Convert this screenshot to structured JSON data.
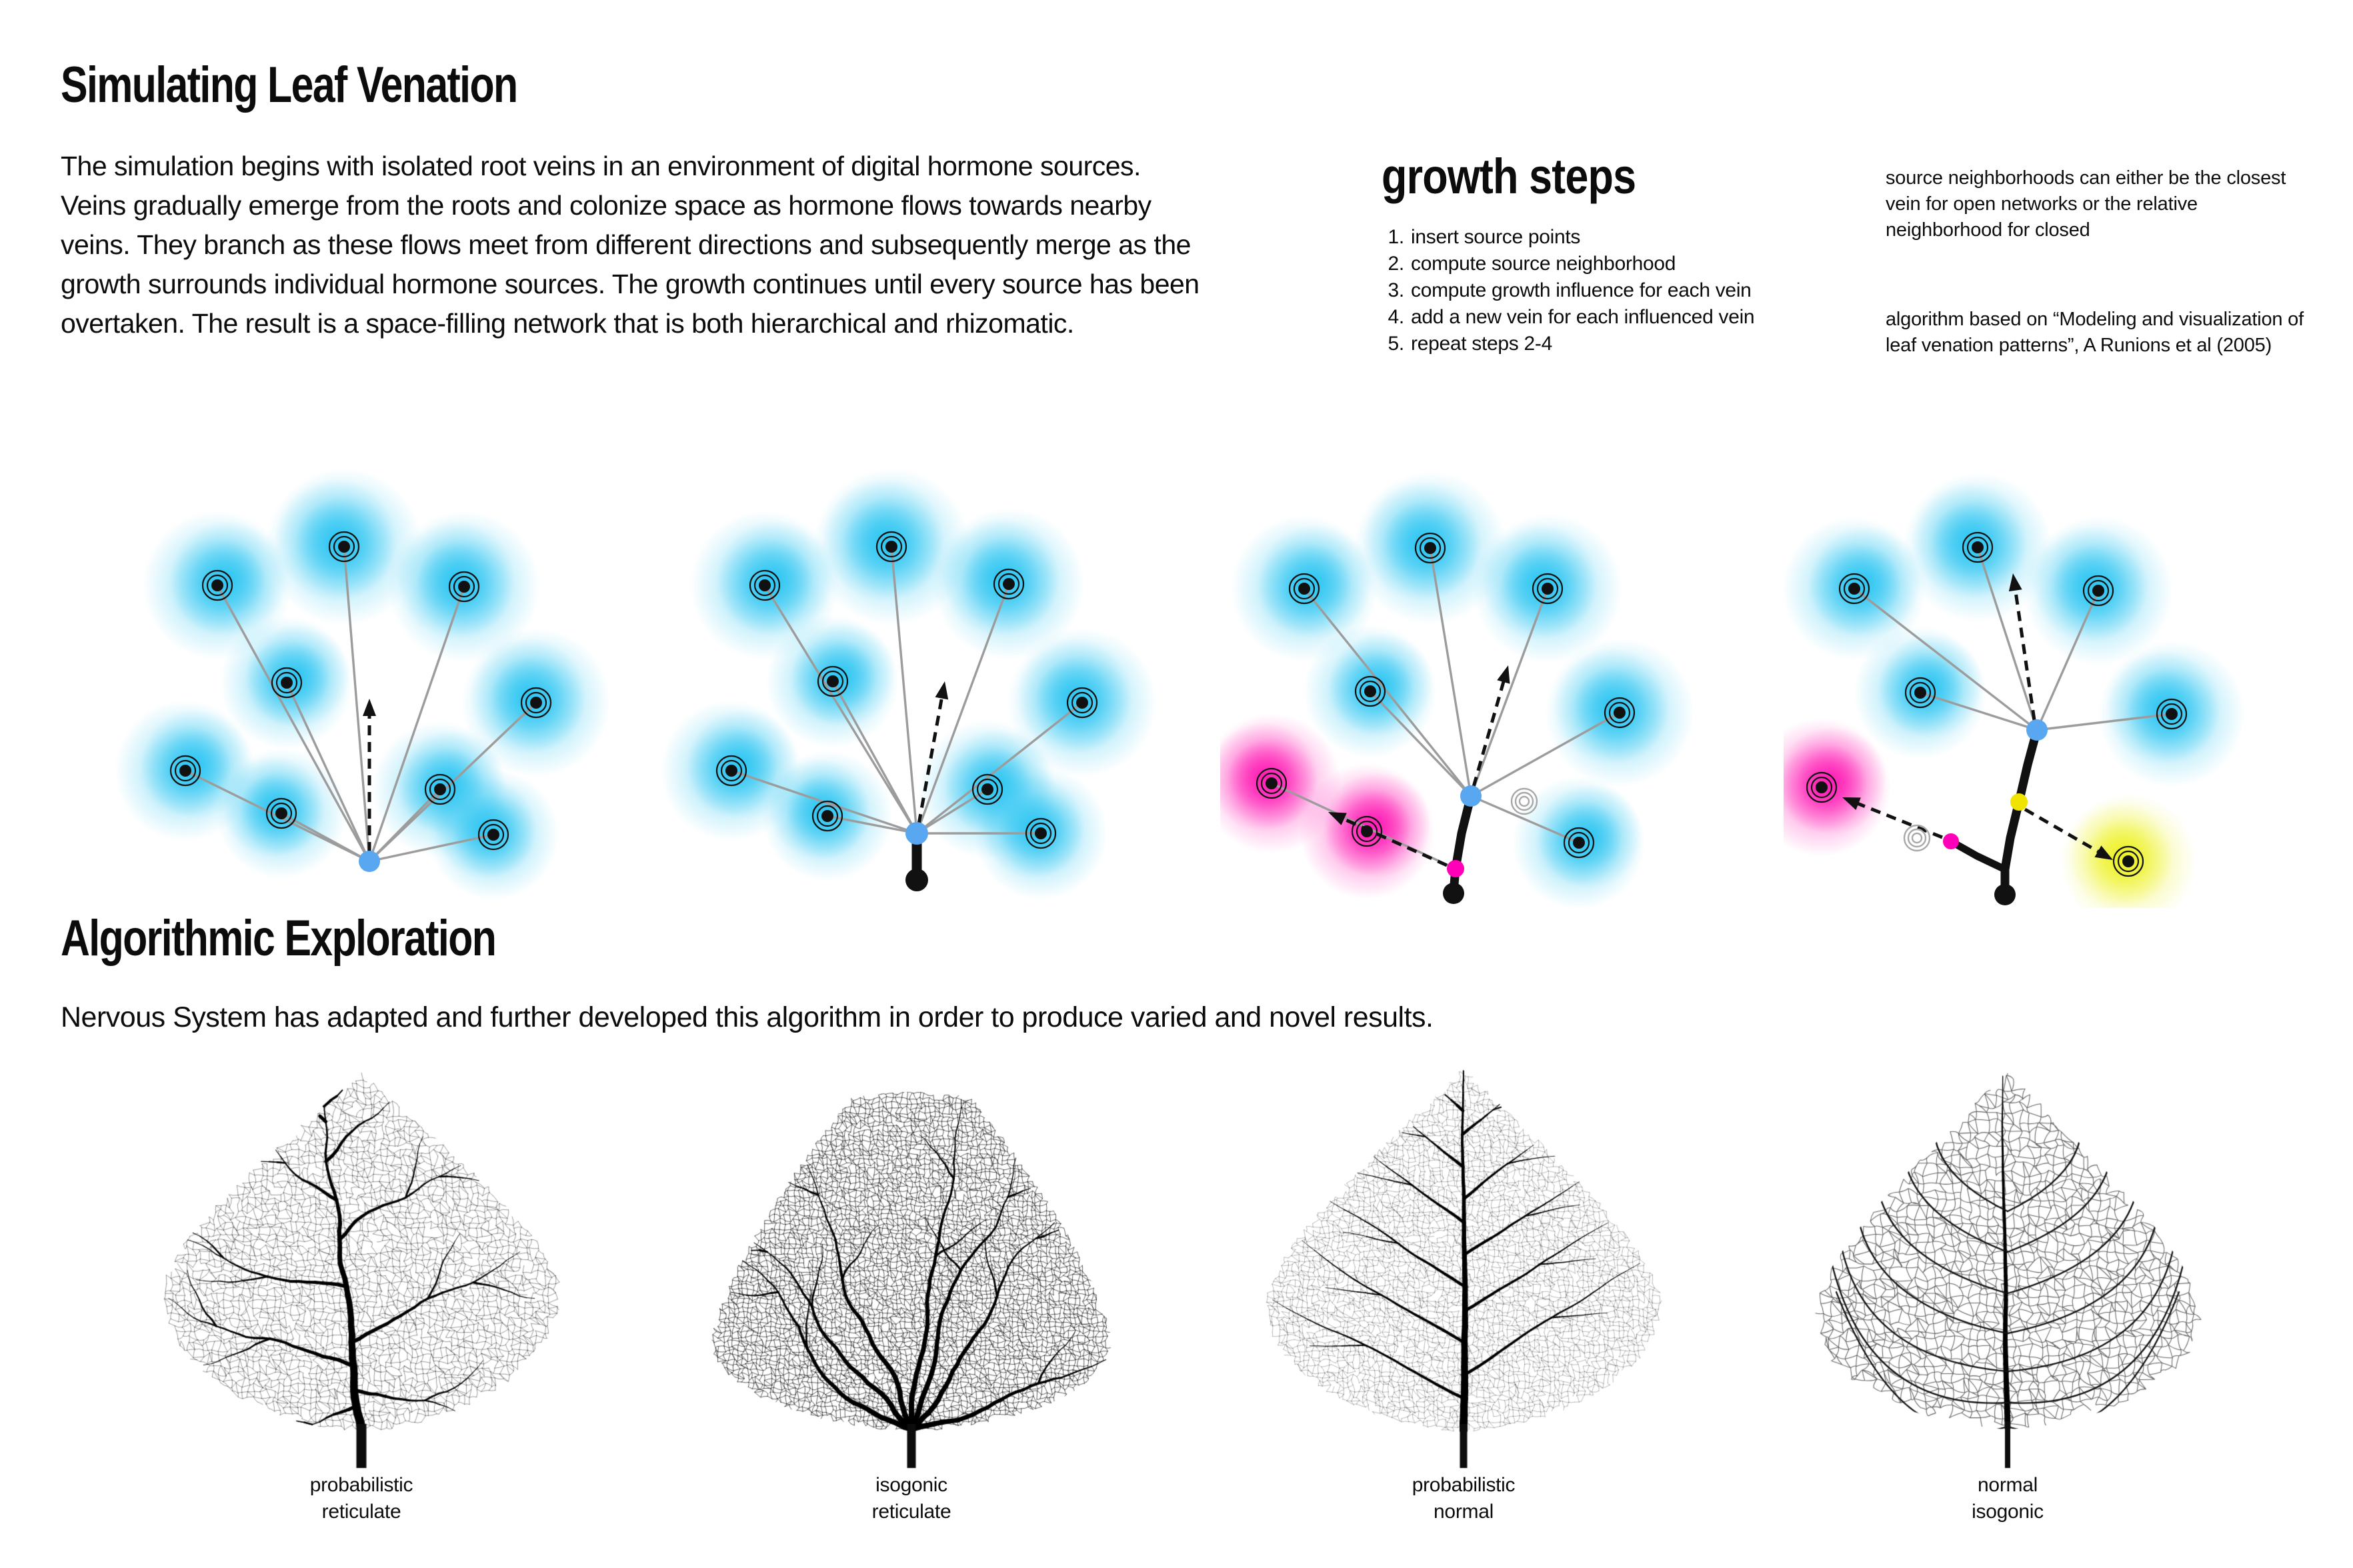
{
  "page": {
    "background": "#ffffff"
  },
  "colors": {
    "ink": "#111111",
    "line_gray": "#9c9c9c",
    "node_blue": "#58a7f0",
    "node_magenta": "#ff00b8",
    "node_yellow": "#f0e300",
    "glow_cyan": "#2fc6f2",
    "glow_magenta": "#ff1eb5",
    "glow_yellow": "#eef229",
    "dead_ring_gray": "#a8a8a8"
  },
  "header": {
    "title": "Simulating Leaf Venation",
    "intro": "The simulation begins with isolated root veins in an environment of digital hormone sources. Veins gradually emerge from the roots and colonize space as hormone flows towards nearby veins. They branch as these flows meet from different directions and subsequently merge as the growth surrounds individual hormone sources. The growth continues until every source has been overtaken. The result is a space-filling network that is both hierarchical and rhizomatic."
  },
  "growth_steps": {
    "heading": "growth steps",
    "steps": [
      "insert source points",
      "compute source neighborhood",
      "compute growth influence for each vein",
      "add a new vein for each influenced vein",
      "repeat steps 2-4"
    ]
  },
  "side_notes": {
    "neighborhoods": "source neighborhoods can either be the closest vein for open networks or the relative neighborhood for closed",
    "citation": "algorithm based on “Modeling and visualization of leaf venation patterns”, A Runions et al (2005)"
  },
  "exploration": {
    "heading": "Algorithmic Exploration",
    "body": "Nervous System has adapted and further developed this algorithm in order to produce varied and novel results."
  },
  "leaves": [
    {
      "label_line1": "probabilistic",
      "label_line2": "reticulate"
    },
    {
      "label_line1": "isogonic",
      "label_line2": "reticulate"
    },
    {
      "label_line1": "probabilistic",
      "label_line2": "normal"
    },
    {
      "label_line1": "normal",
      "label_line2": "isogonic"
    }
  ]
}
